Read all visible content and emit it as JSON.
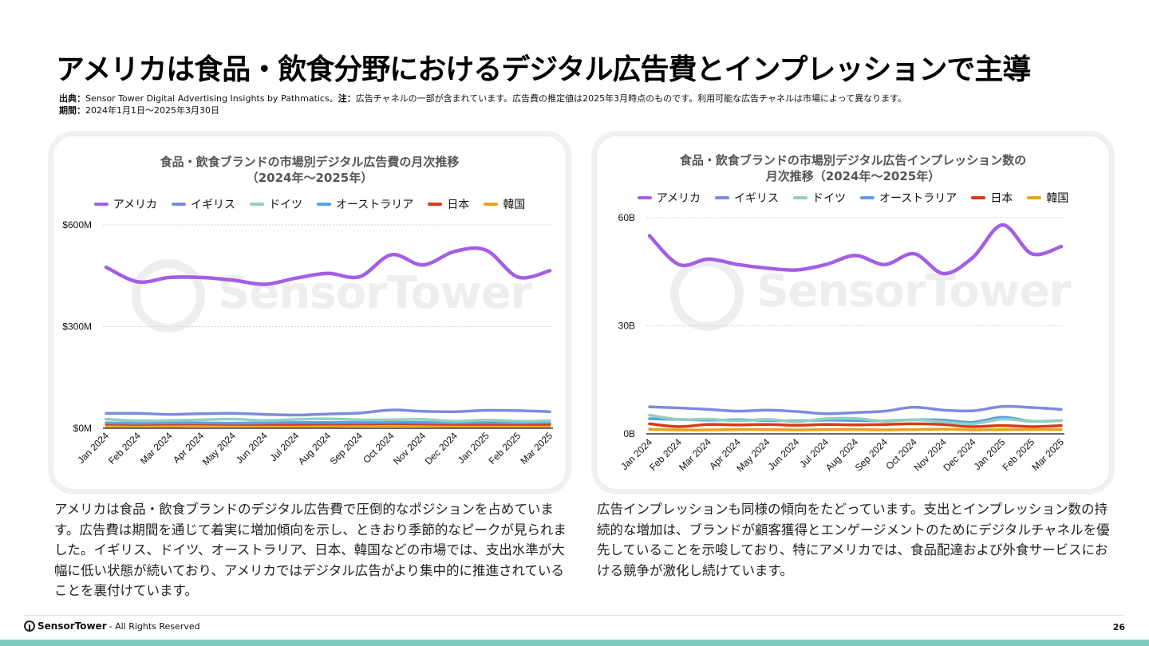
{
  "page": {
    "title": "アメリカは食品・飲食分野におけるデジタル広告費とインプレッションで主導",
    "source_label": "出典：",
    "source_text": "Sensor Tower Digital Advertising Insights by Pathmatics。",
    "note_label": "注：",
    "note_text": "広告チャネルの一部が含まれています。広告費の推定値は2025年3月時点のものです。利用可能な広告チャネルは市場によって異なります。",
    "period_label": "期間：",
    "period_text": "2024年1月1日〜2025年3月30日",
    "watermark_text": "SensorTower",
    "left_text": "アメリカは食品・飲食ブランドのデジタル広告費で圧倒的なポジションを占めています。広告費は期間を通じて着実に増加傾向を示し、ときおり季節的なピークが見られました。イギリス、ドイツ、オーストラリア、日本、韓国などの市場では、支出水準が大幅に低い状態が続いており、アメリカではデジタル広告がより集中的に推進されていることを裏付けています。",
    "right_text": "広告インプレッションも同様の傾向をたどっています。支出とインプレッション数の持続的な増加は、ブランドが顧客獲得とエンゲージメントのためにデジタルチャネルを優先していることを示唆しており、特にアメリカでは、食品配達および外食サービスにおける競争が激化し続けています。",
    "footer_brand": "SensorTower",
    "footer_rights": " - All Rights Reserved",
    "page_number": "26"
  },
  "colors": {
    "アメリカ": "#a45ee5",
    "イギリス": "#7b8cde",
    "ドイツ": "#8fd1c0",
    "オーストラリア": "#5b9ee8",
    "日本": "#d63b16",
    "韓国": "#e8a318",
    "grid": "#d6d6d6",
    "axis": "#111111"
  },
  "chart_data": [
    {
      "type": "line",
      "title_line1": "食品・飲食ブランドの市場別デジタル広告費の月次推移",
      "title_line2": "（2024年〜2025年）",
      "categories": [
        "Jan 2024",
        "Feb 2024",
        "Mar 2024",
        "Apr 2024",
        "May 2024",
        "Jun 2024",
        "Jul 2024",
        "Aug 2024",
        "Sep 2024",
        "Oct 2024",
        "Nov 2024",
        "Dec 2024",
        "Jan 2025",
        "Feb 2025",
        "Mar 2025"
      ],
      "ylim": [
        0,
        600
      ],
      "yticks": [
        0,
        300,
        600
      ],
      "ytick_labels": [
        "$0M",
        "$300M",
        "$600M"
      ],
      "series": [
        {
          "name": "アメリカ",
          "values": [
            475,
            432,
            445,
            445,
            437,
            425,
            443,
            457,
            447,
            512,
            482,
            522,
            525,
            446,
            465
          ]
        },
        {
          "name": "イギリス",
          "values": [
            44,
            44,
            41,
            43,
            44,
            41,
            39,
            42,
            45,
            54,
            50,
            49,
            53,
            52,
            49
          ]
        },
        {
          "name": "ドイツ",
          "values": [
            27,
            22,
            23,
            25,
            27,
            23,
            26,
            28,
            25,
            25,
            26,
            21,
            24,
            21,
            22
          ]
        },
        {
          "name": "オーストラリア",
          "values": [
            16,
            15,
            16,
            16,
            15,
            16,
            17,
            17,
            17,
            18,
            17,
            16,
            17,
            16,
            17
          ]
        },
        {
          "name": "日本",
          "values": [
            13,
            12,
            13,
            13,
            12,
            12,
            12,
            13,
            13,
            14,
            13,
            12,
            12,
            12,
            12
          ]
        },
        {
          "name": "韓国",
          "values": [
            6,
            6,
            6,
            7,
            7,
            6,
            6,
            6,
            7,
            7,
            7,
            6,
            6,
            6,
            6
          ]
        }
      ]
    },
    {
      "type": "line",
      "title_line1": "食品・飲食ブランドの市場別デジタル広告インプレッション数の",
      "title_line2": "月次推移（2024年〜2025年）",
      "categories": [
        "Jan 2024",
        "Feb 2024",
        "Mar 2024",
        "Apr 2024",
        "May 2024",
        "Jun 2024",
        "Jul 2024",
        "Aug 2024",
        "Sep 2024",
        "Oct 2024",
        "Nov 2024",
        "Dec 2024",
        "Jan 2025",
        "Feb 2025",
        "Mar 2025"
      ],
      "ylim": [
        0,
        60
      ],
      "yticks": [
        0,
        30,
        60
      ],
      "ytick_labels": [
        "0B",
        "30B",
        "60B"
      ],
      "series": [
        {
          "name": "アメリカ",
          "values": [
            55,
            47,
            48.5,
            47,
            46,
            45.5,
            47,
            49.5,
            47,
            50,
            44.5,
            49,
            58,
            50,
            52
          ]
        },
        {
          "name": "イギリス",
          "values": [
            7.5,
            7.2,
            6.8,
            6.3,
            6.6,
            6.2,
            5.6,
            5.9,
            6.3,
            7.4,
            6.6,
            6.4,
            7.6,
            7.3,
            6.8
          ]
        },
        {
          "name": "ドイツ",
          "values": [
            5.2,
            4.0,
            4.1,
            3.6,
            4.0,
            3.4,
            4.2,
            4.3,
            3.5,
            3.9,
            3.3,
            2.8,
            4.1,
            3.5,
            3.7
          ]
        },
        {
          "name": "オーストラリア",
          "values": [
            4.2,
            4.0,
            3.8,
            3.9,
            3.7,
            3.6,
            3.8,
            3.7,
            3.6,
            3.9,
            3.8,
            3.2,
            4.6,
            3.5,
            3.7
          ]
        },
        {
          "name": "日本",
          "values": [
            2.8,
            2.0,
            2.6,
            2.5,
            2.6,
            2.4,
            2.6,
            2.5,
            2.6,
            2.8,
            2.6,
            2.0,
            2.3,
            2.0,
            2.3
          ]
        },
        {
          "name": "韓国",
          "values": [
            1.3,
            1.1,
            1.1,
            1.2,
            1.2,
            1.1,
            1.2,
            1.2,
            1.1,
            1.2,
            1.3,
            1.1,
            1.2,
            1.2,
            1.2
          ]
        }
      ]
    }
  ]
}
